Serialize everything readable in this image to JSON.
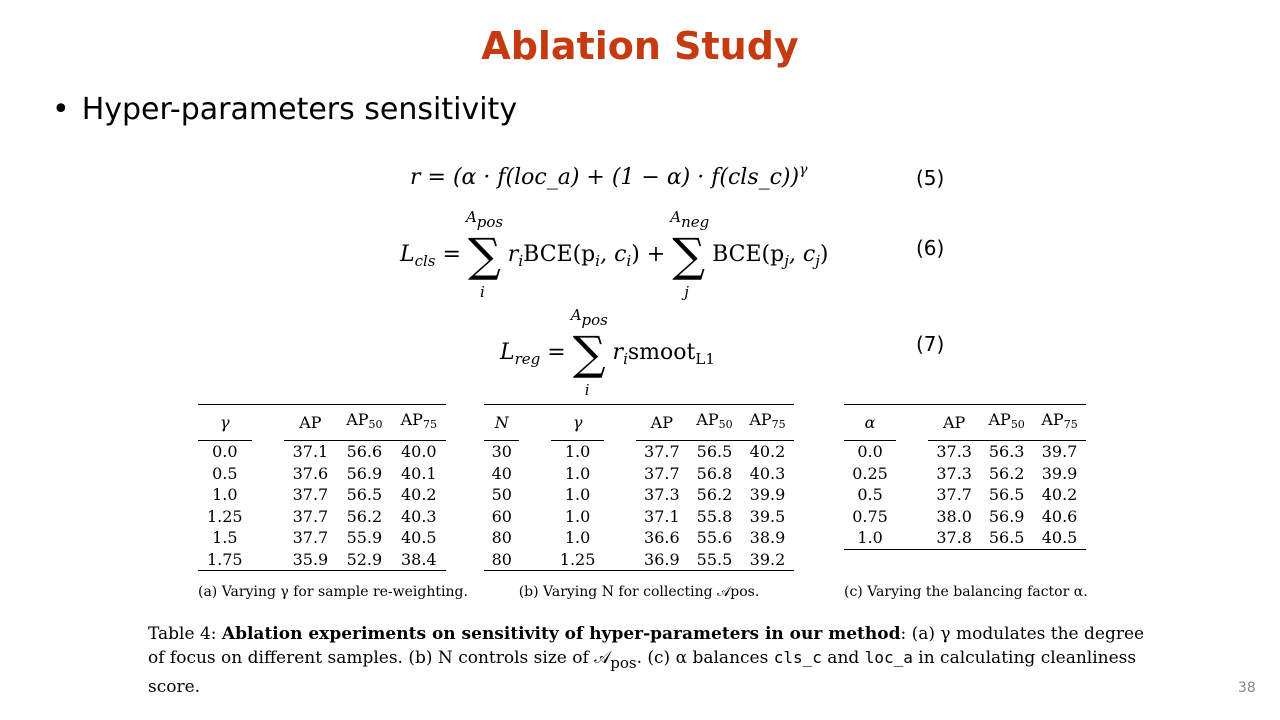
{
  "slide": {
    "title": "Ablation Study",
    "bullet": "Hyper-parameters sensitivity",
    "page_number": "38"
  },
  "equations": {
    "eq5": {
      "lhs": "r",
      "body": "(α · f(loc_a) + (1 − α) · f(cls_c))",
      "exponent": "γ",
      "number": "(5)"
    },
    "eq6": {
      "lhs": "L",
      "lhs_sub": "cls",
      "sum1_top": "A",
      "sum1_top_sub": "pos",
      "sum1_bot": "i",
      "term1": "r",
      "term1_sub": "i",
      "term1_fn": "BCE(p",
      "term1_fn_sub1": "i",
      "term1_fn_mid": ", c",
      "term1_fn_sub2": "i",
      "term1_fn_end": ")",
      "plus": "+",
      "sum2_top": "A",
      "sum2_top_sub": "neg",
      "sum2_bot": "j",
      "term2_fn": "BCE(p",
      "term2_fn_sub1": "j",
      "term2_fn_mid": ", c",
      "term2_fn_sub2": "j",
      "term2_fn_end": ")",
      "number": "(6)"
    },
    "eq7": {
      "lhs": "L",
      "lhs_sub": "reg",
      "sum_top": "A",
      "sum_top_sub": "pos",
      "sum_bot": "i",
      "term": "r",
      "term_sub": "i",
      "fn": "smoot",
      "fn_sub": "L1",
      "number": "(7)"
    }
  },
  "tables": {
    "a": {
      "headers": [
        "γ",
        "AP",
        "AP50",
        "AP75"
      ],
      "rows": [
        [
          "0.0",
          "37.1",
          "56.6",
          "40.0"
        ],
        [
          "0.5",
          "37.6",
          "56.9",
          "40.1"
        ],
        [
          "1.0",
          "37.7",
          "56.5",
          "40.2"
        ],
        [
          "1.25",
          "37.7",
          "56.2",
          "40.3"
        ],
        [
          "1.5",
          "37.7",
          "55.9",
          "40.5"
        ],
        [
          "1.75",
          "35.9",
          "52.9",
          "38.4"
        ]
      ],
      "caption": "(a) Varying γ for sample re-weighting."
    },
    "b": {
      "headers": [
        "N",
        "γ",
        "AP",
        "AP50",
        "AP75"
      ],
      "rows": [
        [
          "30",
          "1.0",
          "37.7",
          "56.5",
          "40.2"
        ],
        [
          "40",
          "1.0",
          "37.7",
          "56.8",
          "40.3"
        ],
        [
          "50",
          "1.0",
          "37.3",
          "56.2",
          "39.9"
        ],
        [
          "60",
          "1.0",
          "37.1",
          "55.8",
          "39.5"
        ],
        [
          "80",
          "1.0",
          "36.6",
          "55.6",
          "38.9"
        ],
        [
          "80",
          "1.25",
          "36.9",
          "55.5",
          "39.2"
        ]
      ],
      "caption": "(b) Varying N for collecting 𝒜pos."
    },
    "c": {
      "headers": [
        "α",
        "AP",
        "AP50",
        "AP75"
      ],
      "rows": [
        [
          "0.0",
          "37.3",
          "56.3",
          "39.7"
        ],
        [
          "0.25",
          "37.3",
          "56.2",
          "39.9"
        ],
        [
          "0.5",
          "37.7",
          "56.5",
          "40.2"
        ],
        [
          "0.75",
          "38.0",
          "56.9",
          "40.6"
        ],
        [
          "1.0",
          "37.8",
          "56.5",
          "40.5"
        ]
      ],
      "caption": "(c) Varying the balancing factor α."
    }
  },
  "table_caption": {
    "label": "Table 4: ",
    "bold": "Ablation experiments on sensitivity of hyper-parameters in our method",
    "p1": ": (a) γ modulates the degree of focus on different samples. (b) N controls size of 𝒜",
    "p1_sub": "pos",
    "p2": ". (c) α balances ",
    "code1": "cls_c",
    "p3": " and ",
    "code2": "loc_a",
    "p4": " in calculating cleanliness score."
  }
}
